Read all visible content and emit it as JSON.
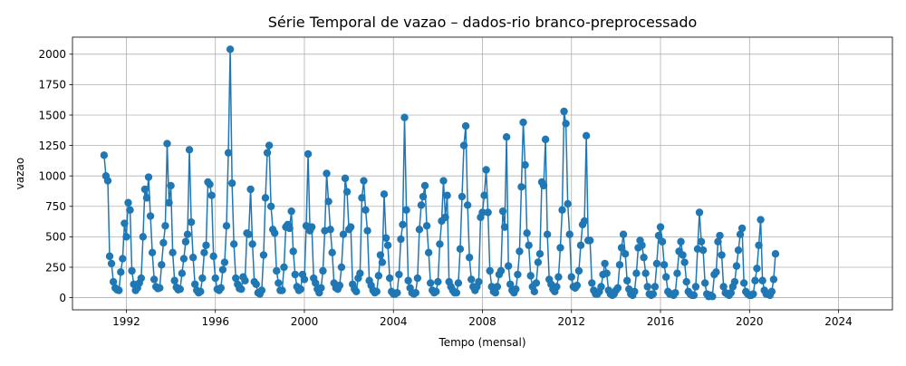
{
  "chart_data": {
    "type": "line",
    "title": "Série Temporal de vazao – dados-rio branco-preprocessado",
    "xlabel": "Tempo (mensal)",
    "ylabel": "vazao",
    "xlim": [
      1989.58,
      2026.42
    ],
    "ylim": [
      -100,
      2140
    ],
    "x_ticks": [
      1992,
      1996,
      2000,
      2004,
      2008,
      2012,
      2016,
      2020,
      2024
    ],
    "y_ticks": [
      0,
      250,
      500,
      750,
      1000,
      1250,
      1500,
      1750,
      2000
    ],
    "grid": true,
    "marker": "circle",
    "colors": {
      "series": "#1f77b4",
      "grid": "#b0b0b0",
      "axis": "#000000"
    },
    "x_start": 1991.0,
    "x_step_months": 1,
    "series": [
      {
        "values": [
          1170,
          1000,
          960,
          340,
          280,
          130,
          80,
          65,
          60,
          210,
          320,
          610,
          500,
          780,
          720,
          220,
          110,
          60,
          80,
          120,
          160,
          500,
          890,
          820,
          990,
          670,
          370,
          150,
          90,
          75,
          80,
          270,
          450,
          590,
          1265,
          780,
          920,
          370,
          140,
          85,
          65,
          70,
          200,
          320,
          460,
          520,
          1215,
          620,
          330,
          110,
          60,
          40,
          50,
          160,
          370,
          430,
          950,
          930,
          840,
          340,
          160,
          70,
          60,
          80,
          230,
          290,
          590,
          1190,
          2040,
          940,
          440,
          160,
          110,
          75,
          70,
          170,
          140,
          530,
          520,
          890,
          440,
          130,
          110,
          40,
          30,
          60,
          350,
          820,
          1190,
          1250,
          750,
          560,
          530,
          220,
          120,
          60,
          60,
          250,
          580,
          600,
          570,
          710,
          380,
          190,
          90,
          60,
          70,
          190,
          150,
          590,
          1180,
          550,
          580,
          160,
          120,
          70,
          40,
          80,
          220,
          550,
          1020,
          790,
          560,
          370,
          120,
          80,
          70,
          100,
          250,
          520,
          980,
          870,
          560,
          580,
          110,
          70,
          50,
          160,
          200,
          820,
          960,
          720,
          550,
          140,
          100,
          60,
          40,
          50,
          180,
          350,
          290,
          850,
          490,
          430,
          160,
          50,
          30,
          30,
          40,
          190,
          480,
          600,
          1480,
          720,
          140,
          80,
          40,
          30,
          40,
          160,
          560,
          760,
          830,
          920,
          590,
          370,
          120,
          60,
          40,
          50,
          130,
          440,
          630,
          960,
          660,
          840,
          130,
          90,
          60,
          40,
          40,
          120,
          400,
          830,
          1250,
          1410,
          760,
          330,
          150,
          90,
          60,
          90,
          130,
          660,
          700,
          840,
          1050,
          700,
          220,
          90,
          50,
          40,
          90,
          190,
          220,
          710,
          580,
          1320,
          260,
          110,
          60,
          40,
          70,
          190,
          380,
          910,
          1440,
          1090,
          530,
          430,
          180,
          90,
          50,
          120,
          290,
          360,
          950,
          920,
          1300,
          520,
          150,
          110,
          70,
          50,
          90,
          170,
          410,
          720,
          1530,
          1430,
          770,
          520,
          170,
          90,
          80,
          100,
          220,
          430,
          600,
          630,
          1330,
          470,
          470,
          120,
          60,
          30,
          30,
          50,
          90,
          190,
          280,
          200,
          60,
          30,
          20,
          30,
          60,
          80,
          270,
          410,
          520,
          360,
          140,
          70,
          30,
          20,
          50,
          200,
          410,
          470,
          430,
          330,
          200,
          90,
          30,
          20,
          30,
          90,
          280,
          510,
          580,
          460,
          270,
          170,
          50,
          30,
          30,
          20,
          40,
          200,
          380,
          460,
          350,
          290,
          130,
          50,
          30,
          20,
          20,
          90,
          400,
          700,
          460,
          390,
          120,
          30,
          10,
          20,
          10,
          190,
          210,
          460,
          510,
          350,
          90,
          40,
          30,
          20,
          40,
          90,
          130,
          260,
          390,
          520,
          570,
          120,
          50,
          30,
          20,
          20,
          30,
          140,
          240,
          430,
          640,
          140,
          60,
          30,
          30,
          20,
          50,
          150,
          360
        ]
      }
    ]
  }
}
